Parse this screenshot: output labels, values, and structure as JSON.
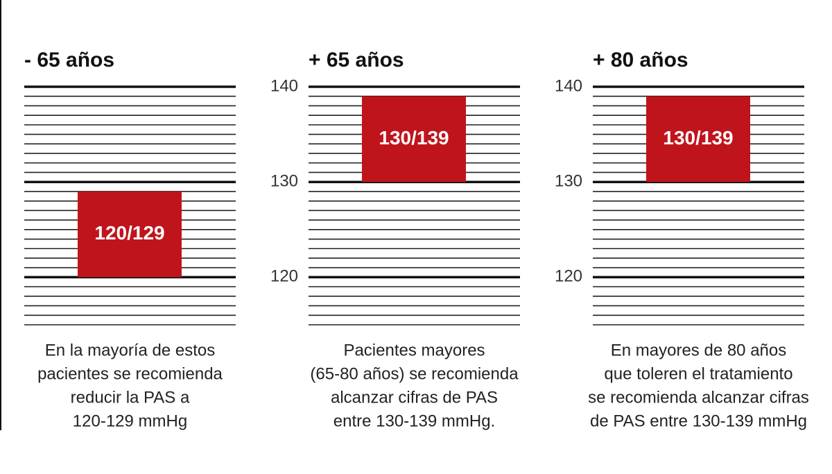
{
  "chart_data": [
    {
      "type": "bar",
      "title": "- 65 años",
      "range": [
        120,
        129
      ],
      "value_label": "120/129",
      "color": "#c0141c",
      "ylim": [
        115,
        140
      ],
      "yticks": [
        120,
        130,
        140
      ],
      "show_tick_labels": false,
      "minor_grid": 1,
      "description": [
        "En la mayoría de estos",
        "pacientes se recomienda",
        "reducir la PAS a",
        "120-129 mmHg"
      ]
    },
    {
      "type": "bar",
      "title": "+ 65 años",
      "range": [
        130,
        139
      ],
      "value_label": "130/139",
      "color": "#c0141c",
      "ylim": [
        115,
        140
      ],
      "yticks": [
        120,
        130,
        140
      ],
      "show_tick_labels": true,
      "minor_grid": 1,
      "description": [
        "Pacientes mayores",
        "(65-80 años) se recomienda",
        "alcanzar cifras de PAS",
        "entre 130-139 mmHg."
      ]
    },
    {
      "type": "bar",
      "title": "+ 80 años",
      "range": [
        130,
        139
      ],
      "value_label": "130/139",
      "color": "#c0141c",
      "ylim": [
        115,
        140
      ],
      "yticks": [
        120,
        130,
        140
      ],
      "show_tick_labels": true,
      "minor_grid": 1,
      "description": [
        "En mayores de 80 años",
        "que toleren el tratamiento",
        "se recomienda alcanzar cifras",
        "de PAS entre 130-139 mmHg"
      ]
    }
  ]
}
